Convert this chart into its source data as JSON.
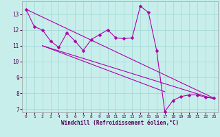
{
  "xlabel": "Windchill (Refroidissement éolien,°C)",
  "background_color": "#c8eeec",
  "grid_color": "#aaddda",
  "line_color": "#aa00aa",
  "xlim": [
    -0.5,
    23.5
  ],
  "ylim": [
    6.8,
    13.8
  ],
  "yticks": [
    7,
    8,
    9,
    10,
    11,
    12,
    13
  ],
  "xticks": [
    0,
    1,
    2,
    3,
    4,
    5,
    6,
    7,
    8,
    9,
    10,
    11,
    12,
    13,
    14,
    15,
    16,
    17,
    18,
    19,
    20,
    21,
    22,
    23
  ],
  "series1_x": [
    0,
    1,
    2,
    3,
    4,
    5,
    6,
    7,
    8,
    9,
    10,
    11,
    12,
    13,
    14,
    15,
    16,
    17,
    18,
    19,
    20,
    21,
    22,
    23
  ],
  "series1_y": [
    13.3,
    12.2,
    12.0,
    11.3,
    10.9,
    11.8,
    11.3,
    10.7,
    11.4,
    11.7,
    12.0,
    11.5,
    11.45,
    11.5,
    13.5,
    13.1,
    10.7,
    6.85,
    7.55,
    7.8,
    7.9,
    7.9,
    7.75,
    7.7
  ],
  "trend1_x": [
    0,
    23
  ],
  "trend1_y": [
    13.3,
    7.7
  ],
  "trend2_x": [
    2,
    23
  ],
  "trend2_y": [
    11.0,
    7.65
  ],
  "trend3_x": [
    2,
    17
  ],
  "trend3_y": [
    11.0,
    8.1
  ]
}
